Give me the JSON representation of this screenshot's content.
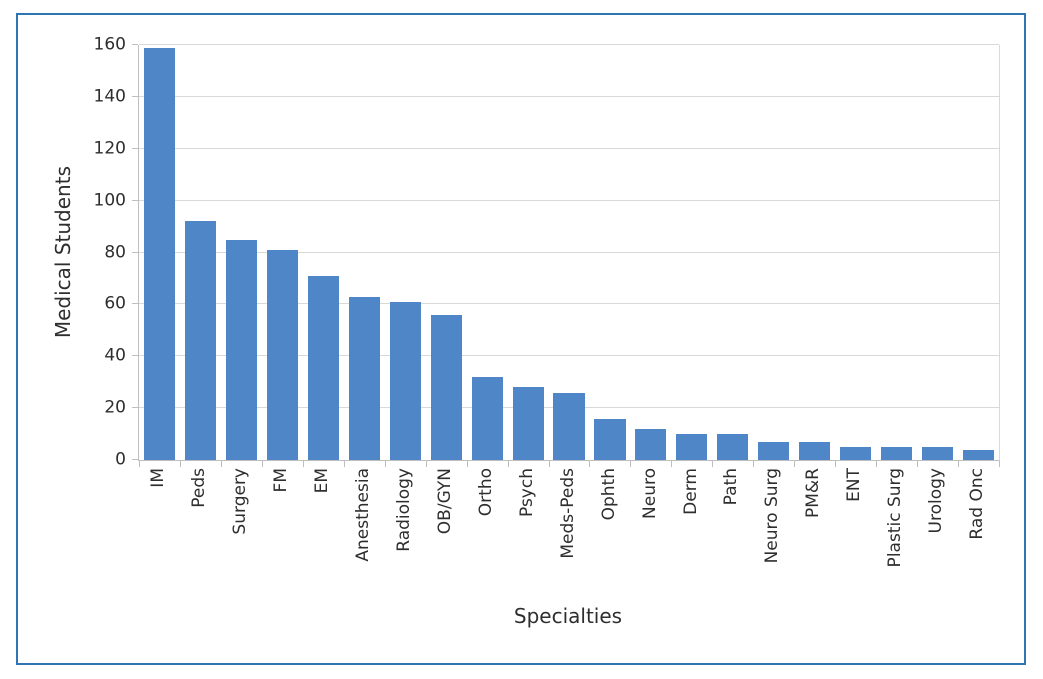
{
  "chart_data": {
    "type": "bar",
    "title": "",
    "xlabel": "Specialties",
    "ylabel": "Medical Students",
    "categories": [
      "IM",
      "Peds",
      "Surgery",
      "FM",
      "EM",
      "Anesthesia",
      "Radiology",
      "OB/GYN",
      "Ortho",
      "Psych",
      "Meds-Peds",
      "Ophth",
      "Neuro",
      "Derm",
      "Path",
      "Neuro Surg",
      "PM&R",
      "ENT",
      "Plastic Surg",
      "Urology",
      "Rad Onc"
    ],
    "values": [
      159,
      92,
      85,
      81,
      71,
      63,
      61,
      56,
      32,
      28,
      26,
      16,
      12,
      10,
      10,
      7,
      7,
      5,
      5,
      5,
      4
    ],
    "ylim": [
      0,
      160
    ],
    "ytick_step": 20,
    "grid": true,
    "legend": "none",
    "bar_color": "#4E86C8",
    "gridline_color": "#D9D9D9",
    "axis_line_color": "#BFBFBF",
    "frame_border_color": "#2E75B6",
    "text_color": "#2e2e2e"
  }
}
